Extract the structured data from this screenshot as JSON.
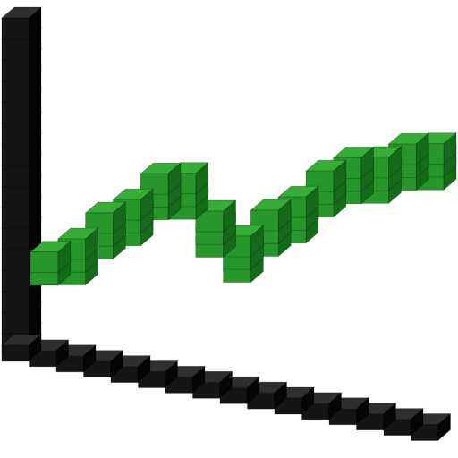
{
  "icon": {
    "name": "voxel-line-chart-icon",
    "chart_data": {
      "type": "line",
      "x": [
        0,
        1,
        2,
        3,
        4,
        5,
        6,
        7,
        8,
        9,
        10,
        11,
        12,
        13,
        14
      ],
      "values": [
        1,
        2,
        4,
        5,
        7,
        7,
        4,
        2,
        4,
        5,
        7,
        8,
        8,
        9,
        9
      ],
      "title": "",
      "xlabel": "",
      "ylabel": ""
    },
    "colors": {
      "axis_front": "#151515",
      "axis_top": "#2f2f2f",
      "axis_side": "#050505",
      "line_front": "#27962b",
      "line_top": "#34ae35",
      "line_side": "#146a18"
    }
  }
}
